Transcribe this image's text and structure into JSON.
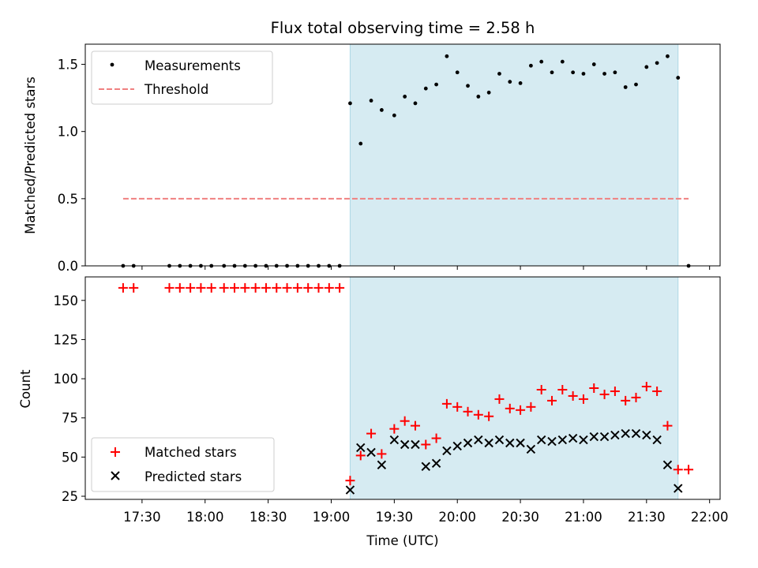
{
  "chart_data": [
    {
      "type": "scatter",
      "title": "Flux total observing time = 2.58 h",
      "ylabel": "Matched/Predicted stars",
      "xlabel": "",
      "ylim": [
        0,
        1.65
      ],
      "yticks": [
        "0.0",
        "0.5",
        "1.0",
        "1.5"
      ],
      "shaded_region": {
        "start": "19:09",
        "end": "21:45",
        "color": "#add8e6"
      },
      "series": [
        {
          "name": "Measurements",
          "marker": "dot",
          "color": "#000000",
          "x": [
            "17:21",
            "17:26",
            "17:43",
            "17:48",
            "17:53",
            "17:58",
            "18:03",
            "18:09",
            "18:14",
            "18:19",
            "18:24",
            "18:29",
            "18:34",
            "18:39",
            "18:44",
            "18:49",
            "18:54",
            "18:59",
            "19:04",
            "19:09",
            "19:14",
            "19:19",
            "19:24",
            "19:30",
            "19:35",
            "19:40",
            "19:45",
            "19:50",
            "19:55",
            "20:00",
            "20:05",
            "20:10",
            "20:15",
            "20:20",
            "20:25",
            "20:30",
            "20:35",
            "20:40",
            "20:45",
            "20:50",
            "20:55",
            "21:00",
            "21:05",
            "21:10",
            "21:15",
            "21:20",
            "21:25",
            "21:30",
            "21:35",
            "21:40",
            "21:45",
            "21:50"
          ],
          "y": [
            0,
            0,
            0,
            0,
            0,
            0,
            0,
            0,
            0,
            0,
            0,
            0,
            0,
            0,
            0,
            0,
            0,
            0,
            0,
            1.21,
            0.91,
            1.23,
            1.16,
            1.12,
            1.26,
            1.21,
            1.32,
            1.35,
            1.56,
            1.44,
            1.34,
            1.26,
            1.29,
            1.43,
            1.37,
            1.36,
            1.49,
            1.52,
            1.44,
            1.52,
            1.44,
            1.43,
            1.5,
            1.43,
            1.44,
            1.33,
            1.35,
            1.48,
            1.51,
            1.56,
            1.4,
            0
          ]
        },
        {
          "name": "Threshold",
          "marker": "dashed-line",
          "color": "#f08080",
          "x": [
            "17:21",
            "21:50"
          ],
          "y": [
            0.5,
            0.5
          ]
        }
      ],
      "legend": {
        "position": "top-left",
        "entries": [
          "Measurements",
          "Threshold"
        ]
      }
    },
    {
      "type": "scatter",
      "title": "",
      "xlabel": "Time (UTC)",
      "ylabel": "Count",
      "ylim": [
        23,
        165
      ],
      "yticks": [
        "25",
        "50",
        "75",
        "100",
        "125",
        "150"
      ],
      "xticks": [
        "17:30",
        "18:00",
        "18:30",
        "19:00",
        "19:30",
        "20:00",
        "20:30",
        "21:00",
        "21:30",
        "22:00"
      ],
      "shaded_region": {
        "start": "19:09",
        "end": "21:45",
        "color": "#add8e6"
      },
      "series": [
        {
          "name": "Matched stars",
          "marker": "plus",
          "color": "#ff0000",
          "x": [
            "17:21",
            "17:26",
            "17:43",
            "17:48",
            "17:53",
            "17:58",
            "18:03",
            "18:09",
            "18:14",
            "18:19",
            "18:24",
            "18:29",
            "18:34",
            "18:39",
            "18:44",
            "18:49",
            "18:54",
            "18:59",
            "19:04",
            "19:09",
            "19:14",
            "19:19",
            "19:24",
            "19:30",
            "19:35",
            "19:40",
            "19:45",
            "19:50",
            "19:55",
            "20:00",
            "20:05",
            "20:10",
            "20:15",
            "20:20",
            "20:25",
            "20:30",
            "20:35",
            "20:40",
            "20:45",
            "20:50",
            "20:55",
            "21:00",
            "21:05",
            "21:10",
            "21:15",
            "21:20",
            "21:25",
            "21:30",
            "21:35",
            "21:40",
            "21:45",
            "21:50"
          ],
          "y": [
            158,
            158,
            158,
            158,
            158,
            158,
            158,
            158,
            158,
            158,
            158,
            158,
            158,
            158,
            158,
            158,
            158,
            158,
            158,
            35,
            51,
            65,
            52,
            68,
            73,
            70,
            58,
            62,
            84,
            82,
            79,
            77,
            76,
            87,
            81,
            80,
            82,
            93,
            86,
            93,
            89,
            87,
            94,
            90,
            92,
            86,
            88,
            95,
            92,
            70,
            42,
            42
          ]
        },
        {
          "name": "Predicted stars",
          "marker": "x",
          "color": "#000000",
          "x": [
            "19:09",
            "19:14",
            "19:19",
            "19:24",
            "19:30",
            "19:35",
            "19:40",
            "19:45",
            "19:50",
            "19:55",
            "20:00",
            "20:05",
            "20:10",
            "20:15",
            "20:20",
            "20:25",
            "20:30",
            "20:35",
            "20:40",
            "20:45",
            "20:50",
            "20:55",
            "21:00",
            "21:05",
            "21:10",
            "21:15",
            "21:20",
            "21:25",
            "21:30",
            "21:35",
            "21:40",
            "21:45"
          ],
          "y": [
            29,
            56,
            53,
            45,
            61,
            58,
            58,
            44,
            46,
            54,
            57,
            59,
            61,
            59,
            61,
            59,
            59,
            55,
            61,
            60,
            61,
            62,
            61,
            63,
            63,
            64,
            65,
            65,
            64,
            61,
            45,
            30
          ]
        }
      ],
      "legend": {
        "position": "bottom-left",
        "entries": [
          "Matched stars",
          "Predicted stars"
        ]
      }
    }
  ]
}
